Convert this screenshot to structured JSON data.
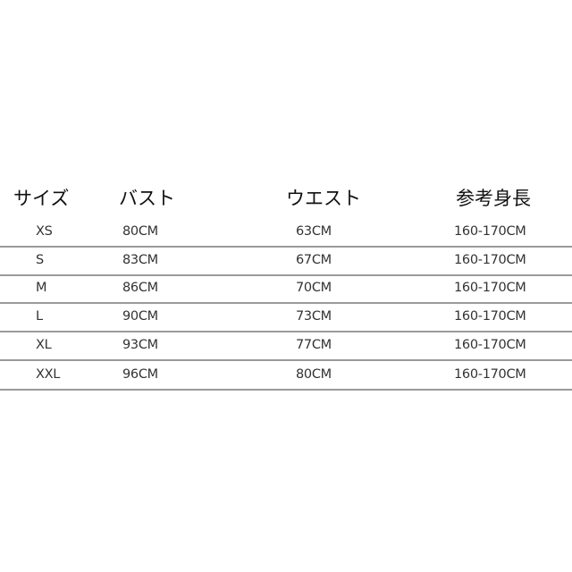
{
  "table": {
    "headers": [
      "サイズ",
      "バスト",
      "ウエスト",
      "参考身長"
    ],
    "rows": [
      [
        "XS",
        "80CM",
        "63CM",
        "160-170CM"
      ],
      [
        "S",
        "83CM",
        "67CM",
        "160-170CM"
      ],
      [
        "M",
        "86CM",
        "70CM",
        "160-170CM"
      ],
      [
        "L",
        "90CM",
        "73CM",
        "160-170CM"
      ],
      [
        "XL",
        "93CM",
        "77CM",
        "160-170CM"
      ],
      [
        "XXL",
        "96CM",
        "80CM",
        "160-170CM"
      ]
    ]
  }
}
